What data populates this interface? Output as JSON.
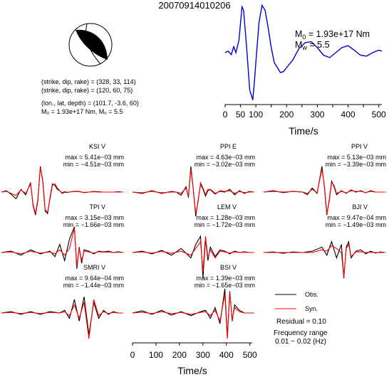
{
  "event_id": "20070914010206",
  "beachball": {
    "plane1": "(strike, dip, rake) = (328, 33, 114)",
    "plane2": "(strike, dip, rake) = (120, 60, 75)",
    "location": "(lon., lat, depth) = (101.7, -3.6, 60)",
    "moment": "M₀ = 1.93e+17 Nm, Mᵤ = 5.5",
    "colors": {
      "compressional": "#000000",
      "dilatational": "#ffffff"
    }
  },
  "stf": {
    "m0_label": "M",
    "m0_sub": "0",
    "m0_value": " = 1.93e+17 Nm",
    "mw_label": "M",
    "mw_sub": "w",
    "mw_value": " = 5.5",
    "color": "#0000cc"
  },
  "top_xlabel": "Time/s",
  "bottom_xlabel": "Time/s",
  "legend": {
    "obs": "Obs.",
    "syn": "Syn.",
    "residual": "Residual = 0.10",
    "freq_title": "Frequency range",
    "freq_range": "0.01 − 0.02 (Hz)"
  },
  "stations": [
    {
      "name": "KSI V",
      "max": "max = 5.41e−03 mm",
      "min": "min = −4.51e−03 mm"
    },
    {
      "name": "PPI E",
      "max": "max = 4.63e−03 mm",
      "min": "min = −3.02e−03 mm"
    },
    {
      "name": "PPI V",
      "max": "max = 5.13e−03 mm",
      "min": "min = −3.39e−03 mm"
    },
    {
      "name": "TPI V",
      "max": "max = 3.15e−03 mm",
      "min": "min = −1.66e−03 mm"
    },
    {
      "name": "LEM V",
      "max": "max = 1.28e−03 mm",
      "min": "min = −1.72e−03 mm"
    },
    {
      "name": "BJI V",
      "max": "max = 9.47e−04 mm",
      "min": "min = −1.49e−03 mm"
    },
    {
      "name": "SMRI V",
      "max": "max = 9.64e−04 mm",
      "min": "min = −1.44e−03 mm"
    },
    {
      "name": "BSI V",
      "max": "max = 1.39e−03 mm",
      "min": "min = −1.65e−03 mm"
    }
  ],
  "chart_data": [
    {
      "type": "line",
      "id": "source-time-function",
      "xlabel": "Time/s",
      "xlim": [
        0,
        510
      ],
      "xticks": [
        0,
        50,
        100,
        150,
        200,
        250,
        300,
        350,
        400,
        450,
        500
      ],
      "series": [
        {
          "x": [
            0,
            10,
            20,
            28,
            35,
            45,
            55,
            60,
            70,
            80,
            90,
            95,
            100,
            110,
            120,
            130,
            140,
            150,
            160,
            170,
            180,
            190,
            200,
            220,
            240,
            260,
            280,
            300,
            320,
            340,
            360,
            380,
            400,
            420,
            440,
            460,
            480,
            500,
            510
          ],
          "values": [
            0.0,
            0.03,
            -0.04,
            0.12,
            0.0,
            0.25,
            0.92,
            0.85,
            0.1,
            -0.75,
            -0.95,
            -0.6,
            -0.2,
            0.6,
            0.95,
            0.85,
            0.5,
            0.1,
            -0.2,
            -0.3,
            -0.4,
            -0.38,
            -0.3,
            -0.15,
            0.08,
            0.2,
            0.22,
            0.1,
            -0.05,
            -0.1,
            0.0,
            0.1,
            0.14,
            0.05,
            -0.05,
            -0.07,
            0.0,
            0.05,
            0.03
          ]
        }
      ]
    },
    {
      "type": "line",
      "id": "waveform-fits",
      "xlabel": "Time/s",
      "xlim": [
        0,
        510
      ],
      "xticks": [
        0,
        100,
        200,
        300,
        400,
        500
      ],
      "series": [
        {
          "name": "Obs.",
          "color": "#000000"
        },
        {
          "name": "Syn.",
          "color": "#ff0000"
        }
      ],
      "traces": [
        {
          "x": [
            0,
            20,
            40,
            60,
            80,
            100,
            120,
            130,
            140,
            150,
            160,
            170,
            180,
            190,
            200,
            210,
            220,
            230,
            240,
            250,
            260,
            270,
            280,
            300,
            320,
            340,
            360,
            380,
            400,
            420,
            440,
            460,
            480,
            500
          ],
          "obs": [
            0.0,
            0.05,
            -0.08,
            -0.25,
            0.1,
            -0.1,
            0.35,
            -0.5,
            -0.85,
            -0.3,
            0.95,
            0.4,
            -0.7,
            -0.8,
            -0.2,
            0.3,
            0.25,
            0.1,
            0.05,
            -0.05,
            0.0,
            -0.02,
            0.0,
            0.03,
            0.02,
            -0.02,
            0.0,
            0.02,
            0.01,
            0.0,
            0.0,
            0.0,
            0.01,
            0.0
          ],
          "syn": [
            0.0,
            0.03,
            -0.05,
            -0.12,
            0.08,
            -0.05,
            0.3,
            -0.45,
            -0.8,
            -0.25,
            0.9,
            0.45,
            -0.65,
            -0.75,
            -0.25,
            0.25,
            0.3,
            0.15,
            0.05,
            -0.03,
            0.02,
            -0.01,
            0.0,
            0.02,
            0.01,
            -0.01,
            0.0,
            0.01,
            0.0,
            0.0,
            0.0,
            0.0,
            0.0,
            0.0
          ]
        },
        {
          "x": [
            0,
            40,
            80,
            120,
            160,
            180,
            200,
            220,
            230,
            240,
            250,
            260,
            270,
            280,
            290,
            300,
            310,
            320,
            340,
            360,
            380,
            400,
            420,
            440,
            460,
            480,
            500
          ],
          "obs": [
            0.0,
            -0.05,
            0.05,
            -0.05,
            0.02,
            0.0,
            -0.12,
            0.2,
            -0.2,
            0.95,
            0.1,
            -0.9,
            -0.3,
            0.3,
            0.1,
            -0.15,
            0.05,
            0.1,
            -0.05,
            0.03,
            0.0,
            0.1,
            -0.1,
            0.05,
            -0.05,
            0.02,
            0.0
          ],
          "syn": [
            0.0,
            -0.03,
            0.03,
            -0.03,
            0.0,
            0.0,
            -0.05,
            0.15,
            -0.15,
            0.85,
            0.1,
            -0.8,
            -0.35,
            0.35,
            0.15,
            -0.1,
            0.1,
            0.08,
            -0.08,
            0.05,
            0.02,
            0.05,
            -0.05,
            0.02,
            -0.02,
            0.0,
            0.0
          ]
        },
        {
          "x": [
            0,
            40,
            80,
            120,
            160,
            180,
            200,
            220,
            240,
            250,
            260,
            270,
            280,
            290,
            300,
            320,
            340,
            360,
            380,
            400,
            420,
            440,
            460,
            480,
            500
          ],
          "obs": [
            0.0,
            0.05,
            -0.02,
            0.03,
            0.0,
            -0.1,
            0.15,
            -0.05,
            0.95,
            0.2,
            -0.85,
            -0.3,
            0.4,
            0.2,
            -0.1,
            0.05,
            -0.05,
            0.08,
            0.0,
            0.05,
            -0.03,
            0.05,
            0.0,
            0.0,
            0.0
          ],
          "syn": [
            0.0,
            0.03,
            0.0,
            0.02,
            0.0,
            -0.05,
            0.1,
            -0.02,
            0.85,
            0.25,
            -0.8,
            -0.35,
            0.35,
            0.25,
            -0.05,
            0.03,
            -0.03,
            0.05,
            0.02,
            0.03,
            -0.02,
            0.03,
            0.0,
            0.0,
            0.0
          ]
        },
        {
          "x": [
            0,
            40,
            80,
            120,
            160,
            200,
            220,
            240,
            260,
            280,
            300,
            310,
            320,
            330,
            340,
            360,
            380,
            400,
            420,
            440,
            460,
            480,
            500
          ],
          "obs": [
            0.0,
            0.05,
            -0.1,
            0.1,
            -0.05,
            0.05,
            -0.15,
            0.3,
            -0.3,
            0.5,
            0.95,
            -0.6,
            0.2,
            -0.4,
            0.1,
            0.05,
            -0.05,
            0.05,
            0.02,
            0.05,
            0.0,
            0.03,
            0.0
          ],
          "syn": [
            0.0,
            0.02,
            -0.05,
            0.05,
            -0.02,
            0.02,
            -0.05,
            0.1,
            -0.1,
            0.15,
            0.9,
            -0.5,
            0.15,
            -0.3,
            0.05,
            0.02,
            -0.02,
            0.03,
            0.01,
            0.02,
            0.0,
            0.01,
            0.0
          ]
        },
        {
          "x": [
            0,
            40,
            80,
            120,
            160,
            200,
            240,
            260,
            280,
            290,
            300,
            310,
            320,
            340,
            360,
            380,
            400,
            420,
            440,
            460,
            480,
            500
          ],
          "obs": [
            0.0,
            0.05,
            -0.05,
            0.08,
            -0.1,
            0.15,
            -0.2,
            0.3,
            0.6,
            -0.95,
            0.5,
            -0.3,
            0.2,
            -0.15,
            0.1,
            0.05,
            -0.05,
            0.05,
            0.0,
            0.03,
            0.0,
            0.0
          ],
          "syn": [
            0.0,
            0.02,
            -0.02,
            0.04,
            -0.03,
            0.05,
            -0.1,
            0.15,
            0.4,
            -0.7,
            0.6,
            -0.2,
            0.1,
            -0.2,
            0.05,
            0.02,
            -0.02,
            0.02,
            0.0,
            0.01,
            0.0,
            0.0
          ]
        },
        {
          "x": [
            0,
            40,
            80,
            120,
            160,
            200,
            240,
            260,
            280,
            300,
            320,
            330,
            340,
            350,
            360,
            380,
            400,
            420,
            440,
            460,
            480,
            500
          ],
          "obs": [
            0.0,
            0.02,
            -0.03,
            0.02,
            0.0,
            0.05,
            0.2,
            -0.1,
            0.4,
            -0.2,
            0.3,
            -0.95,
            0.2,
            0.4,
            -0.2,
            0.05,
            0.1,
            -0.05,
            0.05,
            -0.02,
            0.02,
            0.0
          ],
          "syn": [
            0.0,
            0.0,
            0.0,
            0.0,
            0.0,
            0.0,
            0.1,
            0.05,
            0.25,
            0.15,
            0.0,
            -0.9,
            0.15,
            0.3,
            -0.15,
            0.02,
            0.03,
            0.0,
            0.01,
            0.0,
            0.0,
            0.0
          ]
        },
        {
          "x": [
            0,
            40,
            80,
            120,
            160,
            200,
            240,
            260,
            280,
            300,
            320,
            340,
            360,
            380,
            400,
            420,
            440,
            460,
            480,
            500
          ],
          "obs": [
            0.0,
            0.05,
            -0.05,
            0.05,
            -0.05,
            0.05,
            0.0,
            0.1,
            -0.2,
            0.5,
            -0.3,
            0.6,
            -0.8,
            0.4,
            -0.2,
            0.1,
            -0.05,
            0.05,
            0.0,
            0.0
          ],
          "syn": [
            0.0,
            0.02,
            -0.02,
            0.02,
            -0.02,
            0.02,
            0.0,
            0.05,
            -0.1,
            0.3,
            -0.2,
            0.4,
            -0.95,
            0.5,
            -0.1,
            0.05,
            -0.02,
            0.02,
            0.0,
            0.0
          ]
        },
        {
          "x": [
            0,
            40,
            80,
            120,
            160,
            200,
            240,
            280,
            300,
            320,
            340,
            360,
            380,
            390,
            400,
            410,
            420,
            440,
            460,
            480,
            500
          ],
          "obs": [
            0.0,
            0.08,
            -0.05,
            0.1,
            -0.08,
            0.05,
            -0.1,
            0.05,
            0.1,
            -0.2,
            0.2,
            -0.4,
            0.9,
            -0.9,
            0.8,
            -0.3,
            0.3,
            0.1,
            0.0,
            0.0,
            0.0
          ],
          "syn": [
            0.0,
            0.03,
            -0.02,
            0.05,
            -0.03,
            0.02,
            -0.05,
            0.02,
            0.05,
            -0.1,
            0.1,
            -0.3,
            0.7,
            -0.95,
            0.75,
            -0.25,
            0.2,
            0.05,
            0.0,
            0.0,
            0.0
          ]
        }
      ]
    }
  ]
}
